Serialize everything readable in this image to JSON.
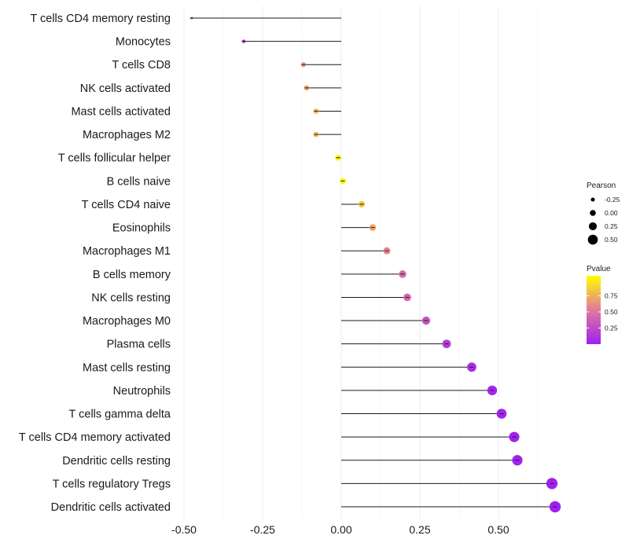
{
  "chart_data": {
    "type": "lollipop",
    "xlim": [
      -0.5,
      0.7
    ],
    "xticks": [
      -0.5,
      -0.25,
      0.0,
      0.25,
      0.5
    ],
    "xtick_labels": [
      "-0.50",
      "-0.25",
      "0.00",
      "0.25",
      "0.50"
    ],
    "grid": true,
    "points": [
      {
        "label": "T cells CD4 memory resting",
        "pearson": -0.475,
        "pvalue": 0.0
      },
      {
        "label": "Monocytes",
        "pearson": -0.31,
        "pvalue": 0.11
      },
      {
        "label": "T cells CD8",
        "pearson": -0.12,
        "pvalue": 0.62
      },
      {
        "label": "NK cells activated",
        "pearson": -0.11,
        "pvalue": 0.65
      },
      {
        "label": "Mast cells activated",
        "pearson": -0.08,
        "pvalue": 0.72
      },
      {
        "label": "Macrophages M2",
        "pearson": -0.08,
        "pvalue": 0.72
      },
      {
        "label": "T cells follicular helper",
        "pearson": -0.01,
        "pvalue": 0.96
      },
      {
        "label": "B cells naive",
        "pearson": 0.005,
        "pvalue": 0.98
      },
      {
        "label": "T cells CD4 naive",
        "pearson": 0.065,
        "pvalue": 0.78
      },
      {
        "label": "Eosinophils",
        "pearson": 0.1,
        "pvalue": 0.67
      },
      {
        "label": "Macrophages M1",
        "pearson": 0.145,
        "pvalue": 0.54
      },
      {
        "label": "B cells memory",
        "pearson": 0.195,
        "pvalue": 0.42
      },
      {
        "label": "NK cells resting",
        "pearson": 0.21,
        "pvalue": 0.38
      },
      {
        "label": "Macrophages M0",
        "pearson": 0.27,
        "pvalue": 0.27
      },
      {
        "label": "Plasma cells",
        "pearson": 0.335,
        "pvalue": 0.16
      },
      {
        "label": "Mast cells resting",
        "pearson": 0.415,
        "pvalue": 0.07
      },
      {
        "label": "Neutrophils",
        "pearson": 0.48,
        "pvalue": 0.03
      },
      {
        "label": "T cells gamma delta",
        "pearson": 0.51,
        "pvalue": 0.02
      },
      {
        "label": "T cells CD4 memory activated",
        "pearson": 0.55,
        "pvalue": 0.01
      },
      {
        "label": "Dendritic cells resting",
        "pearson": 0.56,
        "pvalue": 0.01
      },
      {
        "label": "T cells regulatory  Tregs",
        "pearson": 0.67,
        "pvalue": 0.0
      },
      {
        "label": "Dendritic cells activated",
        "pearson": 0.68,
        "pvalue": 0.0
      }
    ],
    "size_legend": {
      "title": "Pearson",
      "values": [
        -0.25,
        0.0,
        0.25,
        0.5
      ],
      "labels": [
        "-0.25",
        "0.00",
        "0.25",
        "0.50"
      ]
    },
    "color_legend": {
      "title": "Pvalue",
      "ticks": [
        0.75,
        0.5,
        0.25
      ],
      "tick_labels": [
        "0.75",
        "0.50",
        "0.25"
      ],
      "low_color": "#a020f0",
      "mid_color": "#e07a9c",
      "high_color": "#ffff00"
    }
  }
}
